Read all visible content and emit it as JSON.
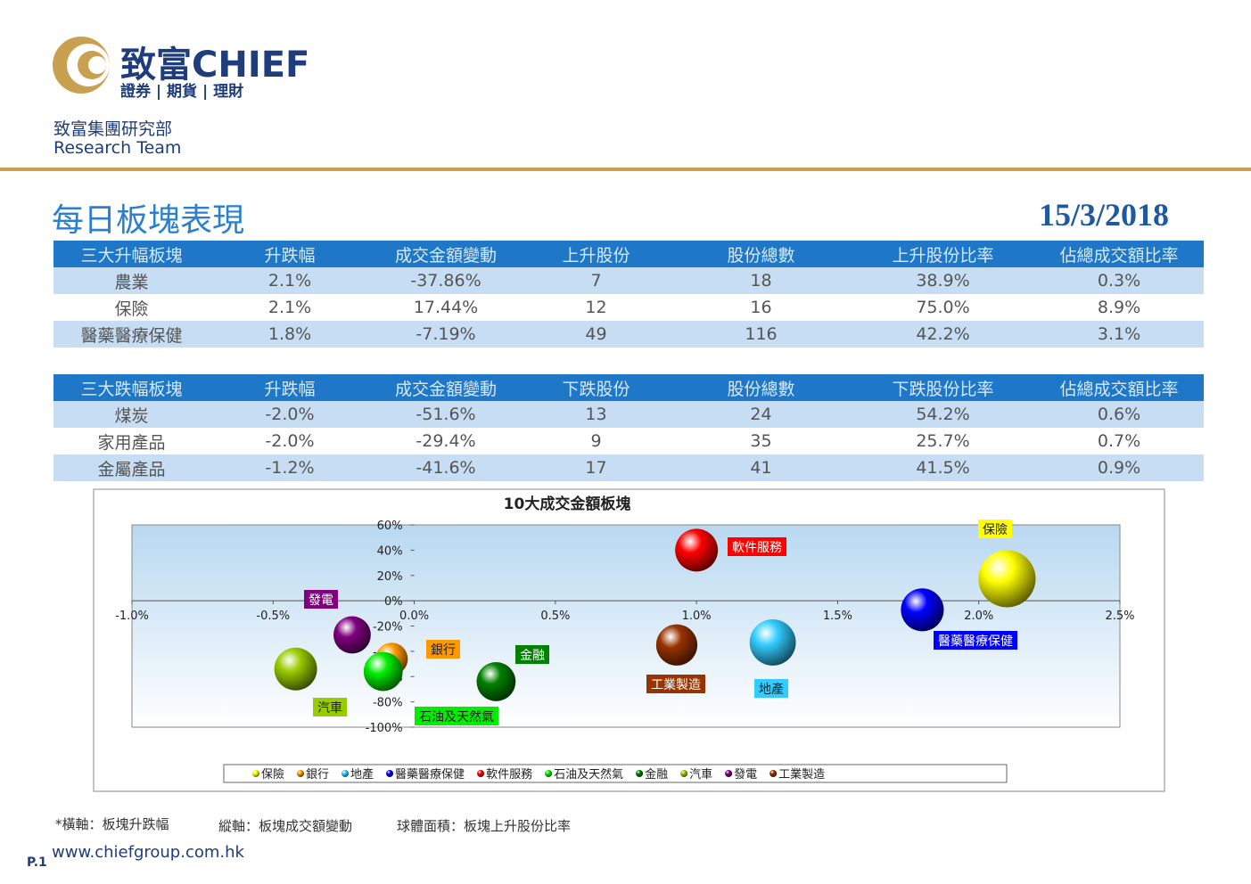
{
  "header": {
    "logo_cn": "致富",
    "logo_en": "CHIEF",
    "logo_sub": "證券 | 期貨 | 理財",
    "dept_cn": "致富集團研究部",
    "dept_en": "Research Team"
  },
  "title": "每日板塊表現",
  "date": "15/3/2018",
  "tables": [
    {
      "header": [
        "三大升幅板塊",
        "升跌幅",
        "成交金額變動",
        "上升股份",
        "股份總數",
        "上升股份比率",
        "佔總成交額比率"
      ],
      "rows": [
        [
          "農業",
          "2.1%",
          "-37.86%",
          "7",
          "18",
          "38.9%",
          "0.3%"
        ],
        [
          "保險",
          "2.1%",
          "17.44%",
          "12",
          "16",
          "75.0%",
          "8.9%"
        ],
        [
          "醫藥醫療保健",
          "1.8%",
          "-7.19%",
          "49",
          "116",
          "42.2%",
          "3.1%"
        ]
      ]
    },
    {
      "header": [
        "三大跌幅板塊",
        "升跌幅",
        "成交金額變動",
        "下跌股份",
        "股份總數",
        "下跌股份比率",
        "佔總成交額比率"
      ],
      "rows": [
        [
          "煤炭",
          "-2.0%",
          "-51.6%",
          "13",
          "24",
          "54.2%",
          "0.6%"
        ],
        [
          "家用產品",
          "-2.0%",
          "-29.4%",
          "9",
          "35",
          "25.7%",
          "0.7%"
        ],
        [
          "金屬產品",
          "-1.2%",
          "-41.6%",
          "17",
          "41",
          "41.5%",
          "0.9%"
        ]
      ]
    }
  ],
  "chart_data": {
    "type": "bubble",
    "title": "10大成交金額板塊",
    "legend": "bottom",
    "xlim": [
      -1.0,
      2.5
    ],
    "ylim": [
      -100,
      60
    ],
    "xticks": [
      {
        "value": -1.0,
        "label": "-1.0%"
      },
      {
        "value": -0.5,
        "label": "-0.5%"
      },
      {
        "value": 0,
        "label": "0.0%"
      },
      {
        "value": 0.5,
        "label": "0.5%"
      },
      {
        "value": 1.0,
        "label": "1.0%"
      },
      {
        "value": 1.5,
        "label": "1.5%"
      },
      {
        "value": 2.0,
        "label": "2.0%"
      },
      {
        "value": 2.5,
        "label": "2.5%"
      }
    ],
    "yticks": [
      {
        "value": 60,
        "label": "60%"
      },
      {
        "value": 40,
        "label": "40%"
      },
      {
        "value": 20,
        "label": "20%"
      },
      {
        "value": 0,
        "label": "0%"
      },
      {
        "value": -20,
        "label": "-20%"
      },
      {
        "value": -40,
        "label": "-40%"
      },
      {
        "value": -60,
        "label": "-60%"
      },
      {
        "value": -80,
        "label": "-80%"
      },
      {
        "value": -100,
        "label": "-100%"
      }
    ],
    "series": [
      {
        "name": "保險",
        "color": "#ffff00",
        "x": [
          2.1
        ],
        "values": [
          17.4
        ],
        "sizes": [
          75
        ]
      },
      {
        "name": "銀行",
        "color": "#ff9900",
        "x": [
          -0.08
        ],
        "values": [
          -46
        ],
        "sizes": [
          24
        ]
      },
      {
        "name": "地產",
        "color": "#33ccff",
        "x": [
          1.27
        ],
        "values": [
          -33
        ],
        "sizes": [
          49
        ]
      },
      {
        "name": "醫藥醫療保健",
        "color": "#0000ff",
        "x": [
          1.8
        ],
        "values": [
          -7.2
        ],
        "sizes": [
          42.2
        ]
      },
      {
        "name": "軟件服務",
        "color": "#ff0000",
        "x": [
          1.0
        ],
        "values": [
          40
        ],
        "sizes": [
          42
        ]
      },
      {
        "name": "石油及天然氣",
        "color": "#00ee00",
        "x": [
          -0.11
        ],
        "values": [
          -56
        ],
        "sizes": [
          35
        ]
      },
      {
        "name": "金融",
        "color": "#008000",
        "x": [
          0.29
        ],
        "values": [
          -64
        ],
        "sizes": [
          35
        ]
      },
      {
        "name": "汽車",
        "color": "#99cc00",
        "x": [
          -0.42
        ],
        "values": [
          -54
        ],
        "sizes": [
          42
        ]
      },
      {
        "name": "發電",
        "color": "#800080",
        "x": [
          -0.22
        ],
        "values": [
          -27
        ],
        "sizes": [
          32
        ]
      },
      {
        "name": "工業製造",
        "color": "#993300",
        "x": [
          0.93
        ],
        "values": [
          -35
        ],
        "sizes": [
          39
        ]
      }
    ]
  },
  "footer": {
    "note_x": "*橫軸：板塊升跌幅",
    "note_y": "縱軸：板塊成交額變動",
    "note_size": "球體面積：板塊上升股份比率",
    "website": "www.chiefgroup.com.hk",
    "page": "P.1"
  }
}
